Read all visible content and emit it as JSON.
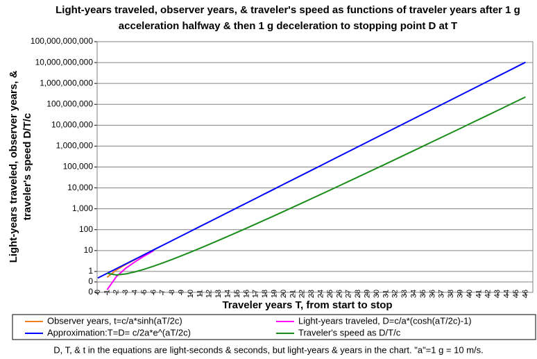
{
  "chart_data": {
    "type": "line",
    "title": [
      "Light-years traveled, observer years, & traveler's speed as functions of traveler years after 1 g",
      "acceleration halfway & then 1 g deceleration to stopping point D at T"
    ],
    "y_label": [
      "Light-years traveled, observer years, &",
      "traveler's speed D/T/c"
    ],
    "x_label": "Traveler years T, from start to stop",
    "footnote": "D, T, & t in the equations are light-seconds & seconds, but light-years & years in the chart. \"a\"=1 g = 10 m/s.",
    "log_y": true,
    "grid": true,
    "categories": [
      "0",
      "1",
      "2",
      "3",
      "4",
      "5",
      "6",
      "7",
      "8",
      "9",
      "10",
      "11",
      "12",
      "13",
      "14",
      "15",
      "16",
      "17",
      "18",
      "19",
      "20",
      "21",
      "22",
      "23",
      "24",
      "25",
      "26",
      "27",
      "28",
      "29",
      "30",
      "31",
      "32",
      "33",
      "34",
      "35",
      "36",
      "37",
      "38",
      "39",
      "40",
      "41",
      "42",
      "43",
      "44",
      "45",
      "46"
    ],
    "ylim": [
      0.1,
      100000000000
    ],
    "yticks": [
      {
        "value": 0.1,
        "label": "0"
      },
      {
        "value": 0.316,
        "label": "0"
      },
      1,
      10,
      100,
      {
        "value": 1000,
        "label": "1,000"
      },
      {
        "value": 10000,
        "label": "10,000"
      },
      {
        "value": 100000,
        "label": "100,000"
      },
      {
        "value": 1000000,
        "label": "1,000,000"
      },
      {
        "value": 10000000,
        "label": "10,000,000"
      },
      {
        "value": 100000000,
        "label": "100,000,000"
      },
      {
        "value": 1000000000,
        "label": "1,000,000,000"
      },
      {
        "value": 10000000000,
        "label": "10,000,000,000"
      },
      {
        "value": 100000000000,
        "label": "100,000,000,000"
      }
    ],
    "series": [
      {
        "name": "Observer years, t=c/a*sinh(aT/2c)",
        "color": "#f07f1e",
        "values": [
          null,
          0.522,
          1.18,
          2.18,
          3.73,
          6.38,
          10.7,
          null,
          null,
          null,
          null,
          null,
          null,
          null,
          null,
          null,
          null,
          null,
          null,
          null,
          null,
          null,
          null,
          null,
          null,
          null,
          null,
          null,
          null,
          null,
          null,
          null,
          null,
          null,
          null,
          null,
          null,
          null,
          null,
          null,
          null,
          null,
          null,
          null,
          null,
          null,
          null
        ]
      },
      {
        "name": "Light-years traveled, D=c/a*(cosh(aT/2c)-1)",
        "color": "#ff00ff",
        "values": [
          null,
          0.133,
          0.57,
          1.42,
          2.89,
          5.49,
          9.81,
          null,
          null,
          null,
          null,
          null,
          null,
          null,
          null,
          null,
          null,
          null,
          null,
          null,
          null,
          null,
          null,
          null,
          null,
          null,
          null,
          null,
          null,
          null,
          null,
          null,
          null,
          null,
          null,
          null,
          null,
          null,
          null,
          null,
          null,
          null,
          null,
          null,
          null,
          null,
          null
        ]
      },
      {
        "name": "Approximation:T=D= c/2a*e^(aT/2c)",
        "color": "#0000ff",
        "values": [
          0.484,
          0.811,
          1.36,
          2.28,
          3.83,
          6.41,
          10.8,
          18,
          30.3,
          50.7,
          85.1,
          143,
          239,
          401,
          673,
          1130,
          1890,
          3170,
          5320,
          8930,
          15000,
          25100,
          42100,
          70600,
          118000,
          199000,
          333000,
          558000,
          936000,
          1570000,
          2630000,
          4420000,
          7410000,
          12400000,
          20800000,
          34900000,
          58600000,
          98200000,
          165000000,
          276000000,
          463000000,
          777000000,
          1300000000,
          2190000000,
          3660000000,
          6150000000,
          10300000000
        ]
      },
      {
        "name": "Traveler's speed as D/T/c",
        "color": "#1a8c1a",
        "values": [
          null,
          0.811,
          0.68,
          0.76,
          0.956,
          1.28,
          1.79,
          2.58,
          3.78,
          5.64,
          8.51,
          13,
          19.9,
          30.9,
          48.1,
          75.2,
          118,
          187,
          296,
          470,
          749,
          1200,
          1910,
          3070,
          4930,
          7940,
          12800,
          20700,
          33400,
          54200,
          87800,
          142000,
          231000,
          376000,
          613000,
          998000,
          1630000,
          2660000,
          4340000,
          7080000,
          11600000,
          19000000,
          31000000,
          50800000,
          83300000,
          137000000,
          224000000
        ]
      }
    ]
  }
}
